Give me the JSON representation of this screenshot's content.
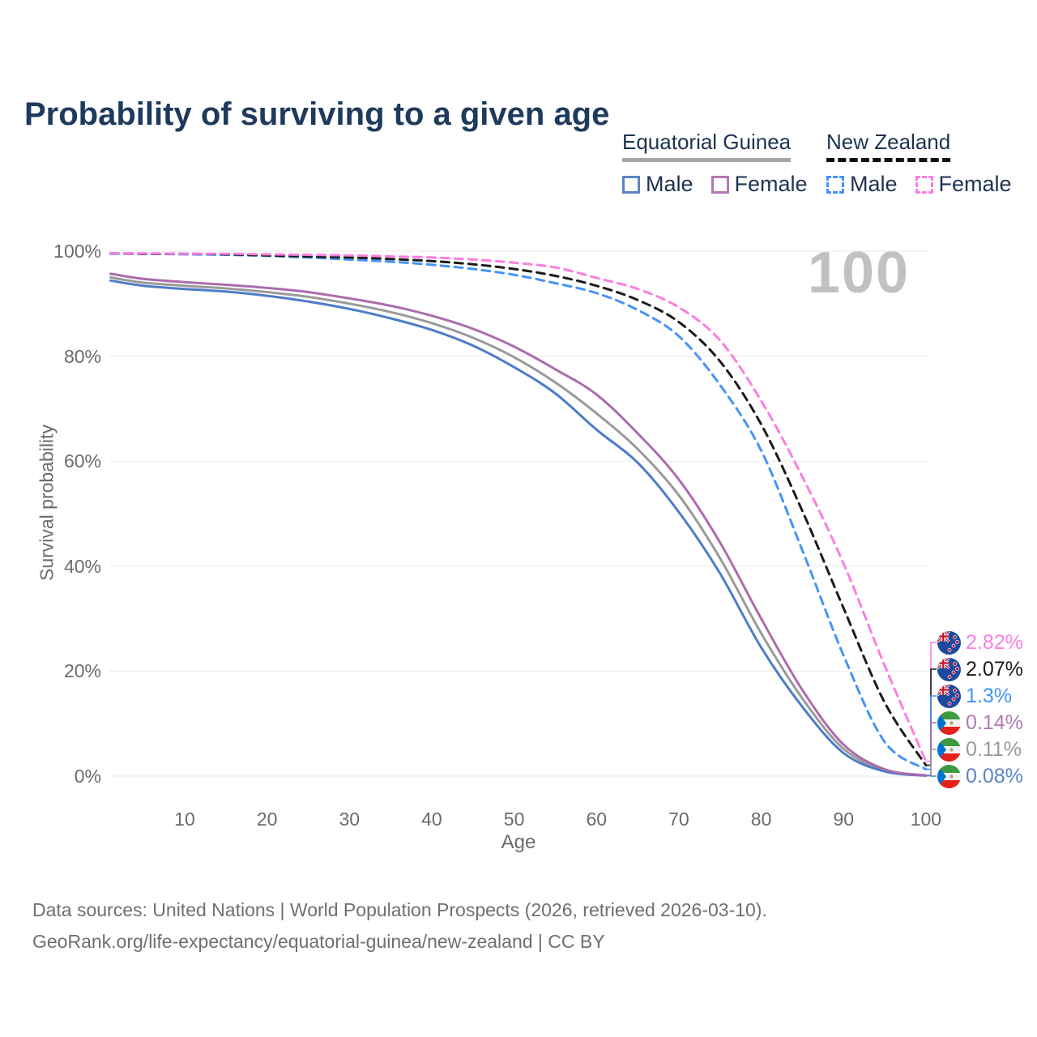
{
  "title": "Probability of surviving to a given age",
  "watermark": "100",
  "legend": {
    "groups": [
      {
        "id": "eg",
        "label": "Equatorial Guinea",
        "items": [
          {
            "label": "Male"
          },
          {
            "label": "Female"
          }
        ]
      },
      {
        "id": "nz",
        "label": "New Zealand",
        "items": [
          {
            "label": "Male"
          },
          {
            "label": "Female"
          }
        ]
      }
    ]
  },
  "footer": {
    "line1": "Data sources: United Nations | World Population Prospects (2026, retrieved 2026-03-10).",
    "line2": "GeoRank.org/life-expectancy/equatorial-guinea/new-zealand | CC BY"
  },
  "chart_data": {
    "type": "line",
    "title": "Probability of surviving to a given age",
    "xlabel": "Age",
    "ylabel": "Survival probability",
    "xlim": [
      1,
      100
    ],
    "ylim": [
      0,
      100
    ],
    "xticks": [
      10,
      20,
      30,
      40,
      50,
      60,
      70,
      80,
      90,
      100
    ],
    "yticks": [
      100,
      80,
      60,
      40,
      20,
      0
    ],
    "ytick_suffix": "%",
    "grid": "horizontal",
    "x": [
      1,
      5,
      10,
      15,
      20,
      25,
      30,
      35,
      40,
      45,
      50,
      55,
      60,
      65,
      70,
      75,
      80,
      85,
      90,
      95,
      100
    ],
    "series": [
      {
        "id": "eg_total",
        "name": "Equatorial Guinea — Total",
        "color": "#9a9a9a",
        "dash": false,
        "values": [
          95.0,
          94.0,
          93.4,
          92.9,
          92.2,
          91.3,
          90.0,
          88.4,
          86.3,
          83.5,
          79.8,
          75.0,
          69.1,
          62.3,
          53.5,
          41.5,
          27.2,
          14.8,
          5.2,
          1.1,
          0.11
        ],
        "end_label": "0.11%",
        "label_color": "#9a9a9a",
        "flag": "equatorial-guinea-flag",
        "label_order": 4
      },
      {
        "id": "eg_male",
        "name": "Equatorial Guinea — Male",
        "color": "#4d7cc9",
        "dash": false,
        "values": [
          94.4,
          93.4,
          92.8,
          92.3,
          91.5,
          90.4,
          89.0,
          87.2,
          85.0,
          82.0,
          77.9,
          72.9,
          66.0,
          59.7,
          50.3,
          38.6,
          24.5,
          13.2,
          4.4,
          0.9,
          0.08
        ],
        "end_label": "0.08%",
        "label_color": "#5b84c4",
        "flag": "equatorial-guinea-flag",
        "label_order": 5
      },
      {
        "id": "eg_female",
        "name": "Equatorial Guinea — Female",
        "color": "#ad6bad",
        "dash": false,
        "values": [
          95.7,
          94.7,
          94.1,
          93.6,
          93.0,
          92.2,
          91.0,
          89.6,
          87.7,
          85.2,
          81.8,
          77.5,
          72.7,
          65.3,
          56.5,
          44.5,
          30.0,
          16.4,
          6.0,
          1.3,
          0.14
        ],
        "end_label": "0.14%",
        "label_color": "#b577b2",
        "flag": "equatorial-guinea-flag",
        "label_order": 3
      },
      {
        "id": "nz_male",
        "name": "New Zealand — Male",
        "color": "#4493f8",
        "dash": true,
        "values": [
          99.5,
          99.5,
          99.4,
          99.3,
          99.1,
          98.8,
          98.4,
          98.0,
          97.4,
          96.6,
          95.5,
          93.9,
          92.0,
          88.8,
          83.8,
          74.5,
          62.0,
          43.0,
          23.0,
          6.5,
          1.3
        ],
        "end_label": "1.3%",
        "label_color": "#4493f8",
        "flag": "new-zealand-flag",
        "label_order": 2
      },
      {
        "id": "nz_total",
        "name": "New Zealand — Total",
        "color": "#1b1b1b",
        "dash": true,
        "values": [
          99.6,
          99.5,
          99.5,
          99.4,
          99.2,
          99.0,
          98.8,
          98.5,
          98.1,
          97.5,
          96.6,
          95.3,
          93.4,
          90.7,
          86.5,
          79.0,
          67.0,
          50.5,
          32.0,
          14.0,
          2.07
        ],
        "end_label": "2.07%",
        "label_color": "#1b1b1b",
        "flag": "new-zealand-flag",
        "label_order": 1
      },
      {
        "id": "nz_female",
        "name": "New Zealand — Female",
        "color": "#fc7ee0",
        "dash": true,
        "values": [
          99.6,
          99.6,
          99.5,
          99.5,
          99.4,
          99.3,
          99.2,
          99.0,
          98.8,
          98.4,
          97.8,
          96.9,
          94.9,
          92.8,
          89.3,
          83.0,
          71.5,
          57.0,
          40.5,
          21.0,
          2.82
        ],
        "end_label": "2.82%",
        "label_color": "#fc7ee0",
        "flag": "new-zealand-flag",
        "label_order": 0
      }
    ]
  }
}
